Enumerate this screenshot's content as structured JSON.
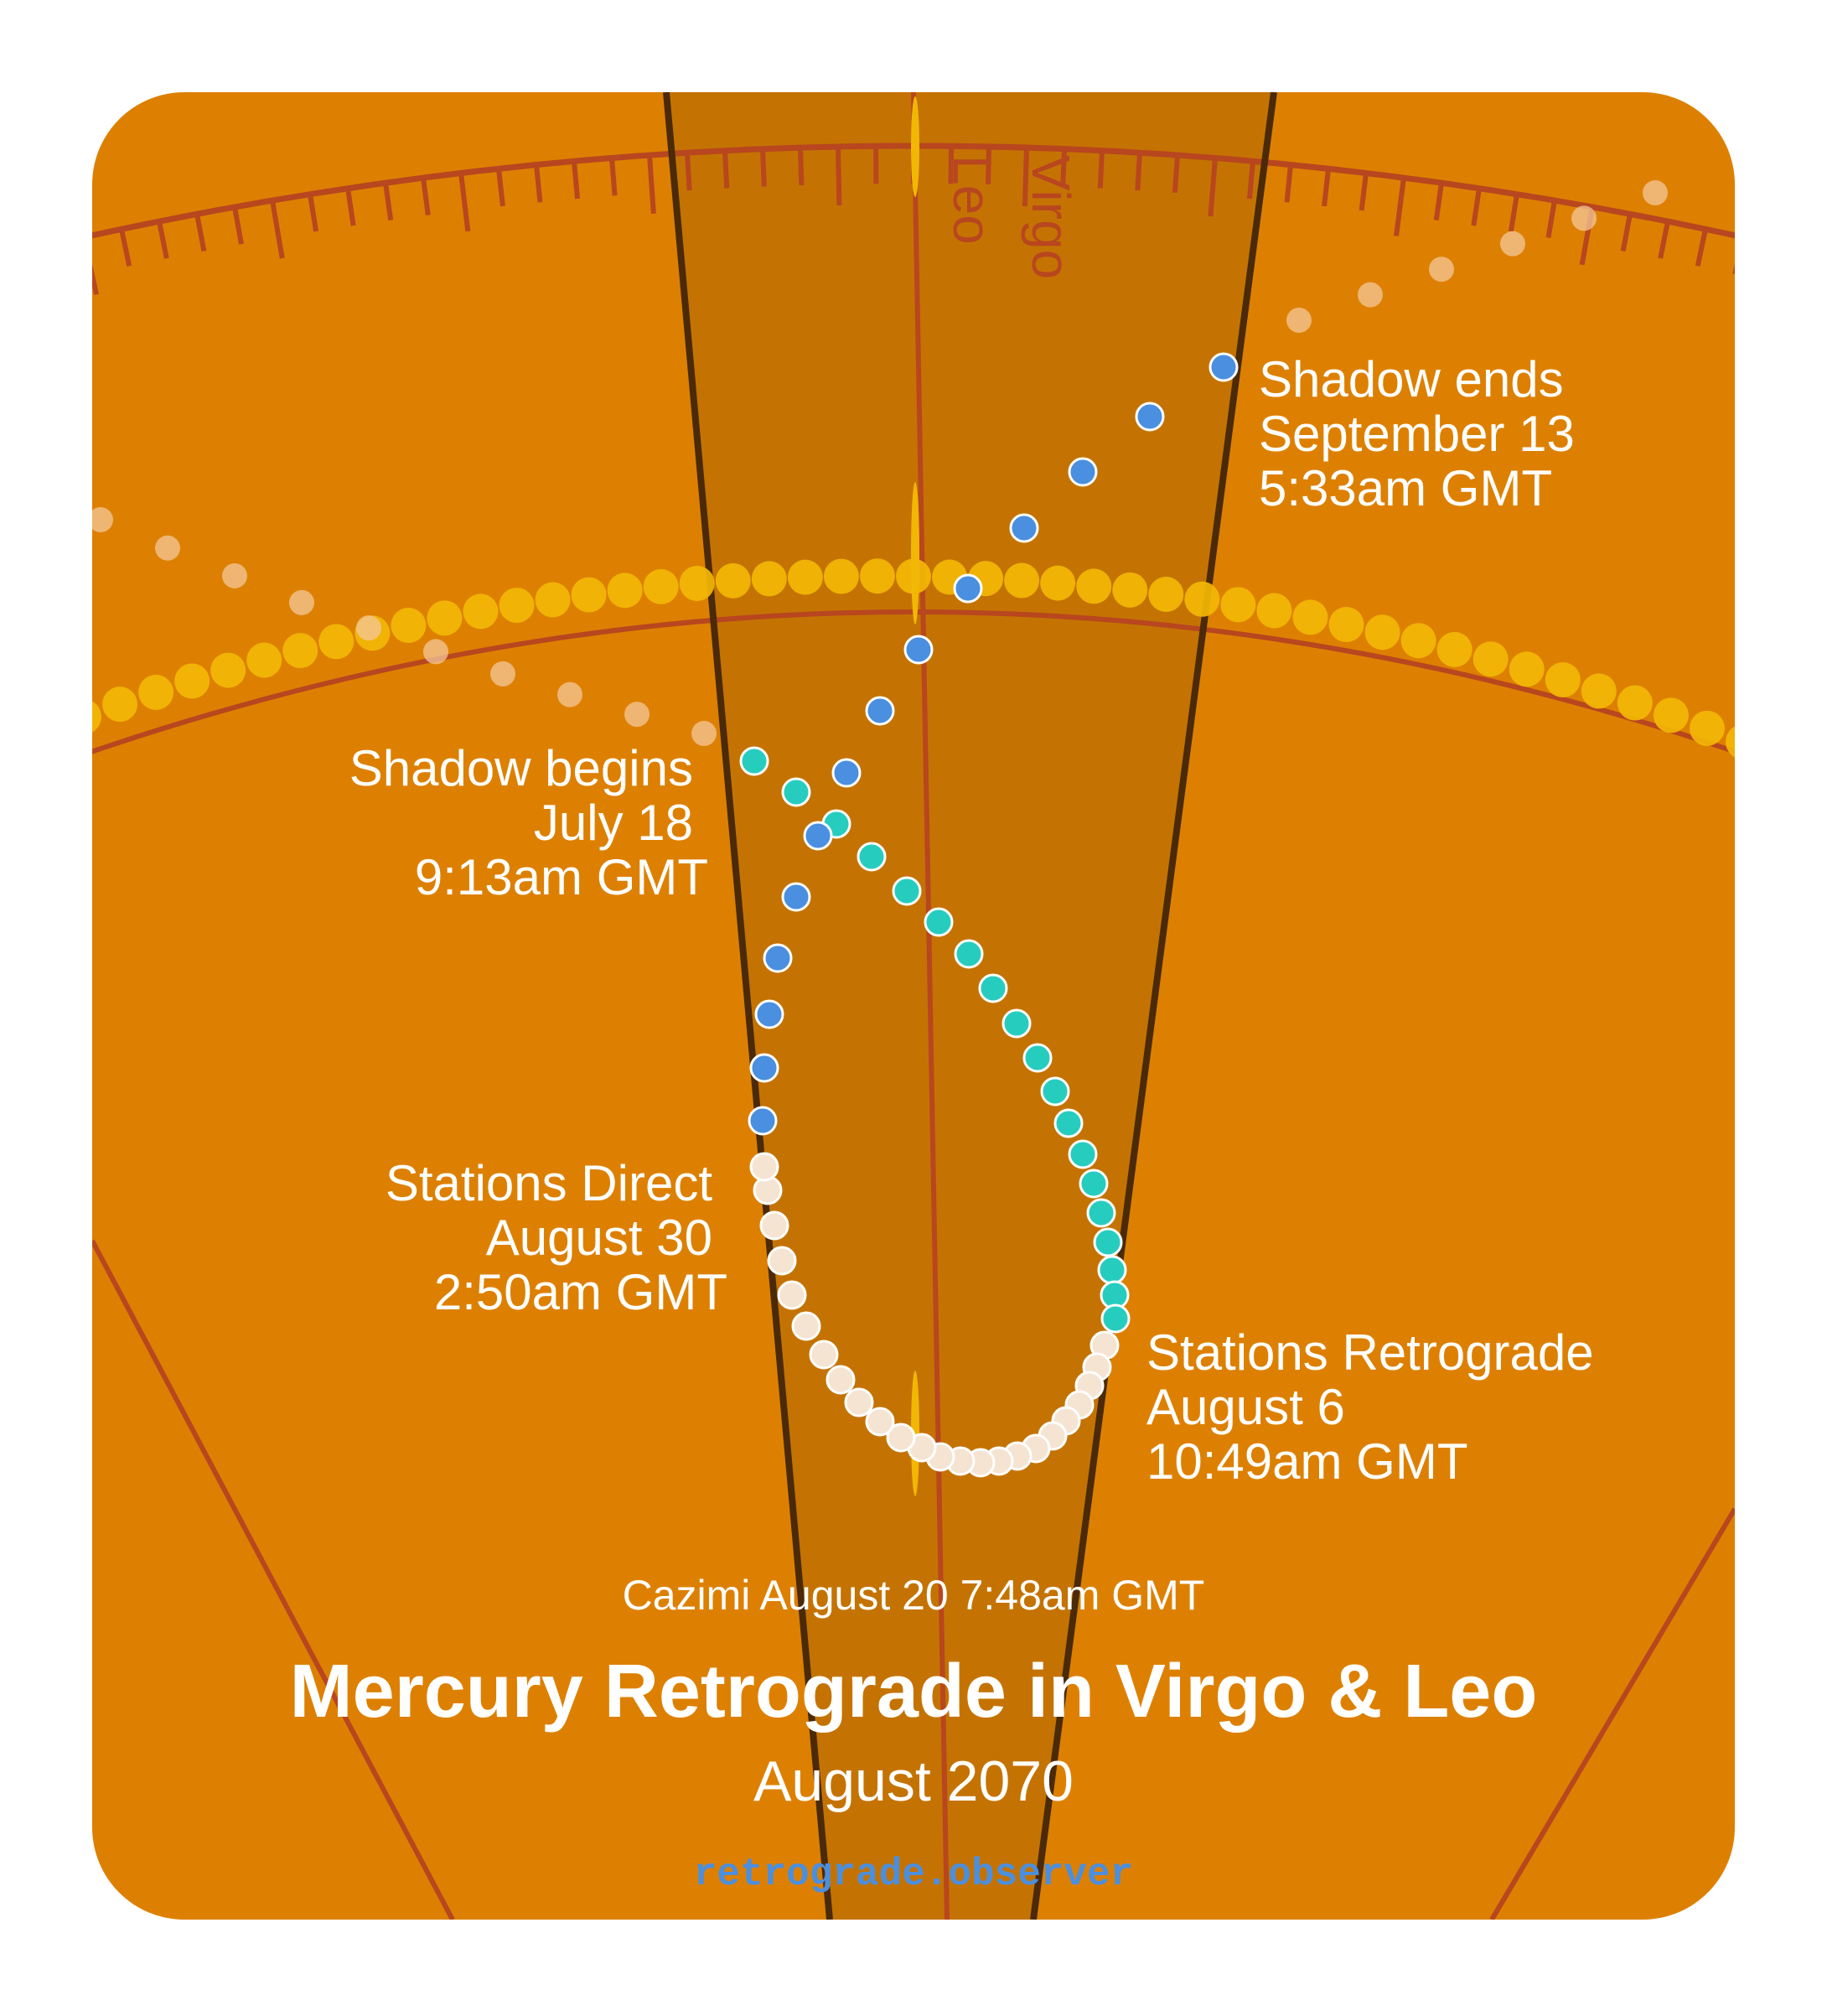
{
  "signs": {
    "left": "Leo",
    "right": "Virgo"
  },
  "shadow_ends": {
    "title": "Shadow ends",
    "date": "September 13",
    "time": "5:33am GMT"
  },
  "shadow_begins": {
    "title": "Shadow begins",
    "date": "July 18",
    "time": "9:13am GMT"
  },
  "stations_direct": {
    "title": "Stations Direct",
    "date": "August 30",
    "time": "2:50am GMT"
  },
  "stations_retrograde": {
    "title": "Stations Retrograde",
    "date": "August 6",
    "time": "10:49am GMT"
  },
  "cazimi": "Cazimi August 20 7:48am GMT",
  "title": "Mercury Retrograde in Virgo & Leo",
  "subtitle": "August 2070",
  "site": "retrograde.observer",
  "colors": {
    "background": "#dd8001",
    "band": "#c47302",
    "band_edge": "#4a2a08",
    "line": "#b8461f",
    "sun_path": "#f2b705",
    "pre_shadow": "#26cdbf",
    "retrograde": "#f5e4d2",
    "post_shadow": "#4a8fe0"
  }
}
